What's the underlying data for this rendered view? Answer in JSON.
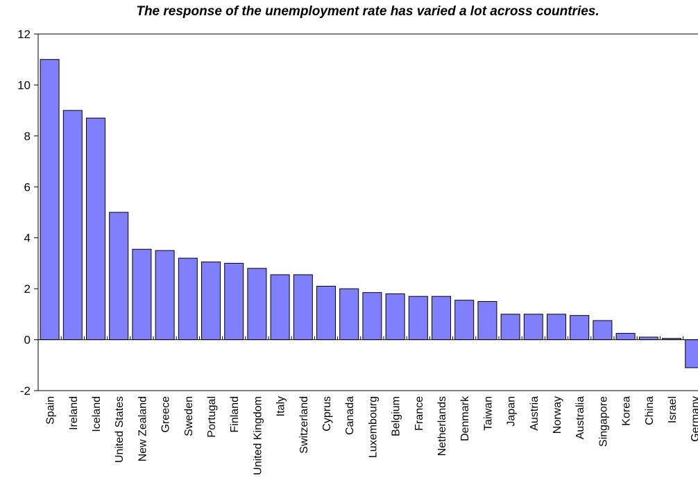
{
  "chart_data": {
    "type": "bar",
    "title": "The response of the unemployment rate has varied a lot across countries.",
    "xlabel": "",
    "ylabel": "",
    "ylim": [
      -2,
      12
    ],
    "yticks": [
      -2,
      0,
      2,
      4,
      6,
      8,
      10,
      12
    ],
    "grid": false,
    "legend": "none",
    "bar_color": "#8080ff",
    "categories": [
      "Spain",
      "Ireland",
      "Iceland",
      "United States",
      "New Zealand",
      "Greece",
      "Sweden",
      "Portugal",
      "Finland",
      "United Kingdom",
      "Italy",
      "Switzerland",
      "Cyprus",
      "Canada",
      "Luxembourg",
      "Belgium",
      "France",
      "Netherlands",
      "Denmark",
      "Taiwan",
      "Japan",
      "Austria",
      "Norway",
      "Australia",
      "Singapore",
      "Korea",
      "China",
      "Israel",
      "Germany"
    ],
    "values": [
      11.0,
      9.0,
      8.7,
      5.0,
      3.55,
      3.5,
      3.2,
      3.05,
      3.0,
      2.8,
      2.55,
      2.55,
      2.1,
      2.0,
      1.85,
      1.8,
      1.7,
      1.7,
      1.55,
      1.5,
      1.0,
      1.0,
      1.0,
      0.95,
      0.75,
      0.25,
      0.1,
      0.05,
      -1.1
    ]
  }
}
